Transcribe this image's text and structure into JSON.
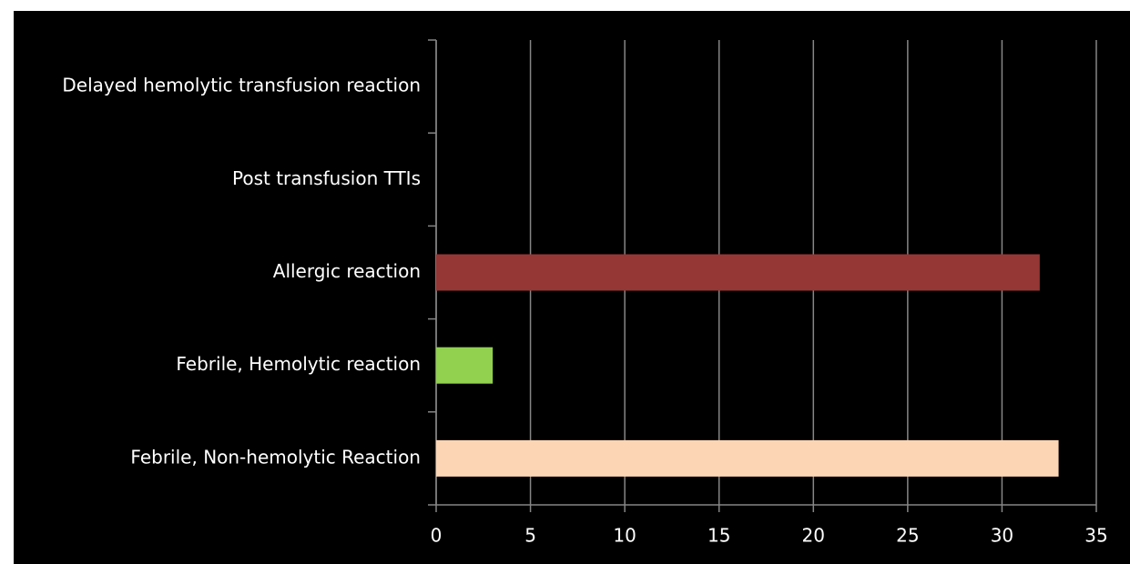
{
  "chart_data": {
    "type": "bar",
    "orientation": "horizontal",
    "categories": [
      "Delayed hemolytic transfusion reaction",
      "Post transfusion TTIs",
      "Allergic reaction",
      "Febrile, Hemolytic reaction",
      "Febrile, Non-hemolytic Reaction"
    ],
    "values": [
      0,
      0,
      32,
      3,
      33
    ],
    "colors": [
      null,
      null,
      "#953735",
      "#92d050",
      "#fcd5b5"
    ],
    "xlim": [
      0,
      35
    ],
    "xticks": [
      0,
      5,
      10,
      15,
      20,
      25,
      30,
      35
    ],
    "grid": true
  }
}
